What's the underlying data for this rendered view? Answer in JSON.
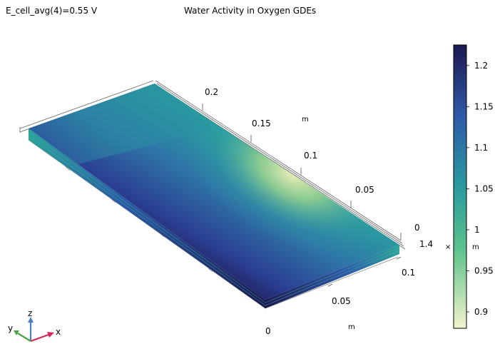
{
  "header": {
    "parameter_label": "E_cell_avg(4)=0.55 V",
    "title": "Water Activity in Oxygen GDEs"
  },
  "colors": {
    "high": "#1d1850",
    "mid_high": "#2e5aa8",
    "mid": "#2a9aa0",
    "mid_low": "#5cc28b",
    "low": "#f3f3cc",
    "axis": "#555555"
  },
  "axes": {
    "back_y_ticks": [
      "0.2",
      "0.15",
      "0.1",
      "0.05",
      "0"
    ],
    "back_unit": "m",
    "front_x_ticks": [
      "1.4",
      "0.1",
      "0.05",
      "0"
    ],
    "front_unit": "m",
    "extra_label_x": "×",
    "extra_label_unit": "m"
  },
  "triad": {
    "z": "z",
    "y": "y",
    "x": "x"
  },
  "colorbar": {
    "ticks": [
      "1.2",
      "1.15",
      "1.1",
      "1.05",
      "1",
      "0.95",
      "0.9"
    ],
    "ticks_values": [
      1.2,
      1.15,
      1.1,
      1.05,
      1.0,
      0.95,
      0.9
    ],
    "min": 0.88,
    "max": 1.225
  },
  "chart_data": {
    "type": "heatmap",
    "title": "Water Activity in Oxygen GDEs",
    "color_range": [
      0.88,
      1.225
    ],
    "colorbar_ticks": [
      0.9,
      0.95,
      1.0,
      1.05,
      1.1,
      1.15,
      1.2
    ]
  }
}
